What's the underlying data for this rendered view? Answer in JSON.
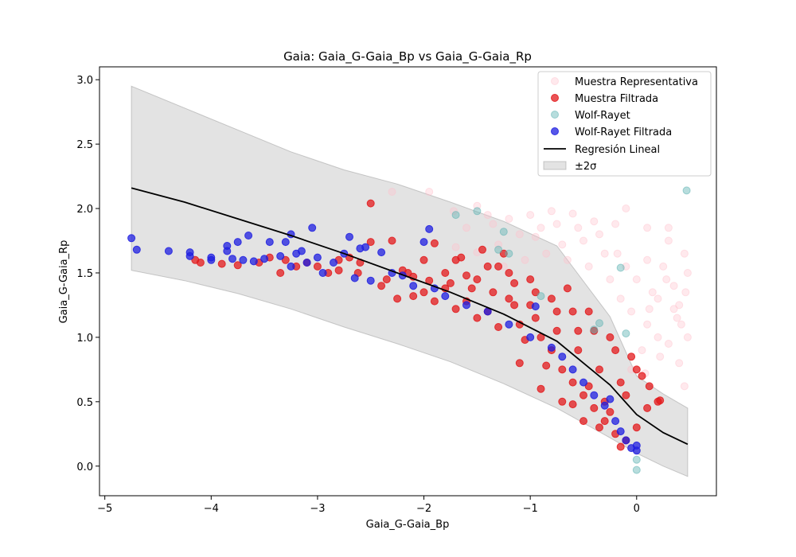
{
  "chart_data": {
    "type": "scatter",
    "title": "Gaia: Gaia_G-Gaia_Bp vs Gaia_G-Gaia_Rp",
    "xlabel": "Gaia_G-Gaia_Bp",
    "ylabel": "Gaia_G-Gaia_Rp",
    "xlim": [
      -5.05,
      0.75
    ],
    "ylim": [
      -0.23,
      3.1
    ],
    "xticks": [
      "−5",
      "−4",
      "−3",
      "−2",
      "−1",
      "0"
    ],
    "xtick_values": [
      -5,
      -4,
      -3,
      -2,
      -1,
      0
    ],
    "yticks": [
      "0.0",
      "0.5",
      "1.0",
      "1.5",
      "2.0",
      "2.5",
      "3.0"
    ],
    "ytick_values": [
      0.0,
      0.5,
      1.0,
      1.5,
      2.0,
      2.5,
      3.0
    ],
    "grid": false,
    "legend_position": "top-right",
    "legend": [
      {
        "label": "Muestra Representativa",
        "kind": "marker",
        "color": "#ffc0cb",
        "opacity": 0.35
      },
      {
        "label": "Muestra Filtrada",
        "kind": "marker",
        "color": "#e31a1c",
        "opacity": 0.75
      },
      {
        "label": "Wolf-Rayet",
        "kind": "marker",
        "color": "#5fb3b3",
        "opacity": 0.45
      },
      {
        "label": "Wolf-Rayet Filtrada",
        "kind": "marker",
        "color": "#1f1fe0",
        "opacity": 0.75
      },
      {
        "label": "Regresión Lineal",
        "kind": "line",
        "color": "#000000"
      },
      {
        "label": "±2σ",
        "kind": "band",
        "color": "#b0b0b0"
      }
    ],
    "regression": {
      "x": [
        -4.75,
        -4.25,
        -3.75,
        -3.25,
        -2.75,
        -2.25,
        -1.75,
        -1.25,
        -0.75,
        -0.25,
        0.0,
        0.25,
        0.48
      ],
      "y": [
        2.16,
        2.05,
        1.92,
        1.79,
        1.65,
        1.5,
        1.35,
        1.18,
        0.97,
        0.63,
        0.4,
        0.26,
        0.17
      ]
    },
    "band": {
      "x": [
        -4.75,
        -4.25,
        -3.75,
        -3.25,
        -2.75,
        -2.25,
        -1.75,
        -1.25,
        -0.75,
        -0.25,
        0.0,
        0.25,
        0.48
      ],
      "upper": [
        2.95,
        2.78,
        2.61,
        2.44,
        2.3,
        2.19,
        2.05,
        1.9,
        1.71,
        1.16,
        0.7,
        0.56,
        0.45
      ],
      "lower": [
        1.52,
        1.44,
        1.34,
        1.22,
        1.08,
        0.95,
        0.81,
        0.64,
        0.45,
        0.22,
        0.1,
        0.0,
        -0.08
      ]
    },
    "series": [
      {
        "name": "Muestra Representativa",
        "color": "#ffc0cb",
        "opacity": 0.35,
        "points": [
          [
            -2.3,
            2.13
          ],
          [
            -1.95,
            2.13
          ],
          [
            -1.72,
            1.98
          ],
          [
            -1.5,
            2.02
          ],
          [
            -1.4,
            1.95
          ],
          [
            -1.2,
            1.92
          ],
          [
            -1.0,
            1.95
          ],
          [
            -0.8,
            1.98
          ],
          [
            -0.6,
            1.96
          ],
          [
            -0.4,
            1.9
          ],
          [
            -0.2,
            1.88
          ],
          [
            0.1,
            1.85
          ],
          [
            0.3,
            1.75
          ],
          [
            0.45,
            1.65
          ],
          [
            0.48,
            1.5
          ],
          [
            0.46,
            1.35
          ],
          [
            0.4,
            1.25
          ],
          [
            0.35,
            1.4
          ],
          [
            0.25,
            1.55
          ],
          [
            0.1,
            1.6
          ],
          [
            0.0,
            1.45
          ],
          [
            -0.1,
            1.55
          ],
          [
            -0.3,
            1.65
          ],
          [
            -0.5,
            1.75
          ],
          [
            -0.7,
            1.72
          ],
          [
            -0.9,
            1.85
          ],
          [
            -1.1,
            1.8
          ],
          [
            -1.3,
            1.72
          ],
          [
            -1.5,
            1.66
          ],
          [
            -1.7,
            1.7
          ],
          [
            -0.05,
            1.2
          ],
          [
            0.1,
            1.1
          ],
          [
            0.2,
            1.0
          ],
          [
            0.3,
            0.95
          ],
          [
            0.4,
            0.8
          ],
          [
            0.05,
            0.9
          ],
          [
            -0.15,
            1.3
          ],
          [
            0.2,
            1.3
          ],
          [
            0.38,
            1.15
          ],
          [
            0.28,
            1.45
          ],
          [
            0.15,
            1.35
          ],
          [
            -0.25,
            1.45
          ],
          [
            -0.45,
            1.55
          ],
          [
            -0.65,
            1.6
          ],
          [
            -0.85,
            1.65
          ],
          [
            -1.05,
            1.6
          ],
          [
            -1.25,
            1.55
          ],
          [
            -0.35,
            1.8
          ],
          [
            -0.55,
            1.85
          ],
          [
            -0.75,
            1.88
          ],
          [
            -0.95,
            1.78
          ],
          [
            0.42,
            1.1
          ],
          [
            0.35,
            1.22
          ],
          [
            0.12,
            1.22
          ],
          [
            -0.05,
            0.75
          ],
          [
            0.08,
            0.72
          ],
          [
            0.22,
            0.85
          ],
          [
            0.45,
            0.62
          ],
          [
            0.48,
            1.0
          ],
          [
            -0.18,
            1.65
          ],
          [
            -1.6,
            1.85
          ],
          [
            -1.35,
            1.88
          ],
          [
            -0.1,
            2.0
          ],
          [
            0.3,
            1.85
          ]
        ]
      },
      {
        "name": "Muestra Filtrada",
        "color": "#e31a1c",
        "opacity": 0.75,
        "points": [
          [
            -4.15,
            1.6
          ],
          [
            -4.1,
            1.58
          ],
          [
            -3.9,
            1.57
          ],
          [
            -3.75,
            1.56
          ],
          [
            -3.55,
            1.58
          ],
          [
            -3.45,
            1.62
          ],
          [
            -3.35,
            1.5
          ],
          [
            -3.2,
            1.55
          ],
          [
            -3.0,
            1.55
          ],
          [
            -2.9,
            1.5
          ],
          [
            -2.8,
            1.52
          ],
          [
            -2.7,
            1.62
          ],
          [
            -2.62,
            1.5
          ],
          [
            -2.5,
            2.04
          ],
          [
            -2.5,
            1.74
          ],
          [
            -2.3,
            1.75
          ],
          [
            -2.25,
            1.3
          ],
          [
            -2.35,
            1.45
          ],
          [
            -2.1,
            1.47
          ],
          [
            -2.0,
            1.6
          ],
          [
            -1.9,
            1.73
          ],
          [
            -1.8,
            1.5
          ],
          [
            -1.7,
            1.6
          ],
          [
            -1.6,
            1.28
          ],
          [
            -1.5,
            1.45
          ],
          [
            -1.4,
            1.2
          ],
          [
            -1.3,
            1.55
          ],
          [
            -1.2,
            1.3
          ],
          [
            -1.1,
            1.1
          ],
          [
            -1.0,
            1.25
          ],
          [
            -0.9,
            1.0
          ],
          [
            -0.8,
            0.9
          ],
          [
            -0.7,
            0.75
          ],
          [
            -0.6,
            0.65
          ],
          [
            -0.5,
            0.55
          ],
          [
            -0.4,
            0.45
          ],
          [
            -0.3,
            0.35
          ],
          [
            -0.2,
            0.25
          ],
          [
            -0.1,
            0.2
          ],
          [
            0.0,
            0.3
          ],
          [
            0.1,
            0.45
          ],
          [
            0.2,
            0.5
          ],
          [
            0.22,
            0.51
          ],
          [
            0.05,
            0.7
          ],
          [
            -0.2,
            0.9
          ],
          [
            -0.4,
            1.05
          ],
          [
            -0.6,
            1.2
          ],
          [
            -0.8,
            1.3
          ],
          [
            -1.0,
            1.45
          ],
          [
            -1.2,
            1.5
          ],
          [
            -1.4,
            1.55
          ],
          [
            -1.6,
            1.48
          ],
          [
            -1.8,
            1.38
          ],
          [
            -2.0,
            1.35
          ],
          [
            -2.2,
            1.52
          ],
          [
            -2.4,
            1.4
          ],
          [
            -1.1,
            0.8
          ],
          [
            -0.9,
            0.6
          ],
          [
            -0.7,
            0.5
          ],
          [
            -0.5,
            0.35
          ],
          [
            -0.3,
            0.5
          ],
          [
            -0.1,
            0.55
          ],
          [
            0.0,
            0.75
          ],
          [
            -0.15,
            0.65
          ],
          [
            -0.35,
            0.75
          ],
          [
            -0.55,
            0.9
          ],
          [
            -0.75,
            1.05
          ],
          [
            -0.95,
            1.15
          ],
          [
            -1.15,
            1.25
          ],
          [
            -1.35,
            1.35
          ],
          [
            -1.55,
            1.38
          ],
          [
            -1.75,
            1.42
          ],
          [
            -1.95,
            1.44
          ],
          [
            -2.15,
            1.5
          ],
          [
            -2.6,
            1.58
          ],
          [
            -2.8,
            1.6
          ],
          [
            -3.1,
            1.58
          ],
          [
            -3.3,
            1.6
          ],
          [
            -0.65,
            1.38
          ],
          [
            -0.45,
            1.2
          ],
          [
            -0.25,
            1.0
          ],
          [
            -0.05,
            0.85
          ],
          [
            -1.25,
            1.65
          ],
          [
            -1.45,
            1.68
          ],
          [
            -1.65,
            1.62
          ],
          [
            -0.85,
            0.78
          ],
          [
            -0.45,
            0.62
          ],
          [
            -0.25,
            0.42
          ],
          [
            -1.05,
            0.98
          ],
          [
            -1.3,
            1.08
          ],
          [
            -1.5,
            1.15
          ],
          [
            -1.7,
            1.22
          ],
          [
            -1.9,
            1.28
          ],
          [
            -2.1,
            1.32
          ],
          [
            -0.6,
            0.48
          ],
          [
            -0.35,
            0.3
          ],
          [
            -0.15,
            0.15
          ],
          [
            0.12,
            0.62
          ],
          [
            -0.75,
            1.2
          ],
          [
            -0.55,
            1.05
          ],
          [
            -0.95,
            1.35
          ],
          [
            -1.15,
            1.42
          ]
        ]
      },
      {
        "name": "Wolf-Rayet",
        "color": "#5fb3b3",
        "opacity": 0.45,
        "points": [
          [
            -1.7,
            1.95
          ],
          [
            -1.5,
            1.98
          ],
          [
            -1.25,
            1.82
          ],
          [
            -1.3,
            1.68
          ],
          [
            -1.2,
            1.65
          ],
          [
            -0.15,
            1.54
          ],
          [
            -0.35,
            1.11
          ],
          [
            -0.1,
            1.03
          ],
          [
            0.0,
            0.05
          ],
          [
            0.0,
            -0.03
          ],
          [
            0.47,
            2.14
          ],
          [
            -0.4,
            1.06
          ],
          [
            -0.9,
            1.32
          ]
        ]
      },
      {
        "name": "Wolf-Rayet Filtrada",
        "color": "#1f1fe0",
        "opacity": 0.75,
        "points": [
          [
            -4.75,
            1.77
          ],
          [
            -4.7,
            1.68
          ],
          [
            -4.4,
            1.67
          ],
          [
            -4.2,
            1.66
          ],
          [
            -4.2,
            1.63
          ],
          [
            -4.0,
            1.62
          ],
          [
            -4.0,
            1.6
          ],
          [
            -3.85,
            1.71
          ],
          [
            -3.85,
            1.67
          ],
          [
            -3.8,
            1.61
          ],
          [
            -3.75,
            1.74
          ],
          [
            -3.7,
            1.6
          ],
          [
            -3.65,
            1.79
          ],
          [
            -3.6,
            1.59
          ],
          [
            -3.5,
            1.61
          ],
          [
            -3.45,
            1.74
          ],
          [
            -3.35,
            1.63
          ],
          [
            -3.3,
            1.74
          ],
          [
            -3.25,
            1.8
          ],
          [
            -3.25,
            1.55
          ],
          [
            -3.2,
            1.65
          ],
          [
            -3.15,
            1.67
          ],
          [
            -3.1,
            1.58
          ],
          [
            -3.05,
            1.85
          ],
          [
            -3.0,
            1.62
          ],
          [
            -2.95,
            1.5
          ],
          [
            -2.85,
            1.58
          ],
          [
            -2.75,
            1.65
          ],
          [
            -2.7,
            1.78
          ],
          [
            -2.6,
            1.69
          ],
          [
            -2.55,
            1.7
          ],
          [
            -2.4,
            1.66
          ],
          [
            -2.3,
            1.5
          ],
          [
            -2.2,
            1.48
          ],
          [
            -2.0,
            1.74
          ],
          [
            -1.95,
            1.84
          ],
          [
            -1.8,
            1.32
          ],
          [
            -1.6,
            1.25
          ],
          [
            -1.4,
            1.2
          ],
          [
            -1.2,
            1.1
          ],
          [
            -1.0,
            1.0
          ],
          [
            -0.95,
            1.24
          ],
          [
            -0.8,
            0.92
          ],
          [
            -0.6,
            0.75
          ],
          [
            -0.5,
            0.65
          ],
          [
            -0.4,
            0.55
          ],
          [
            -0.3,
            0.47
          ],
          [
            -0.2,
            0.35
          ],
          [
            -0.15,
            0.27
          ],
          [
            -0.1,
            0.2
          ],
          [
            -0.05,
            0.14
          ],
          [
            0.0,
            0.16
          ],
          [
            0.0,
            0.12
          ],
          [
            -2.5,
            1.44
          ],
          [
            -2.65,
            1.46
          ],
          [
            -2.1,
            1.4
          ],
          [
            -1.9,
            1.38
          ],
          [
            -0.7,
            0.85
          ],
          [
            -0.25,
            0.52
          ]
        ]
      }
    ]
  }
}
